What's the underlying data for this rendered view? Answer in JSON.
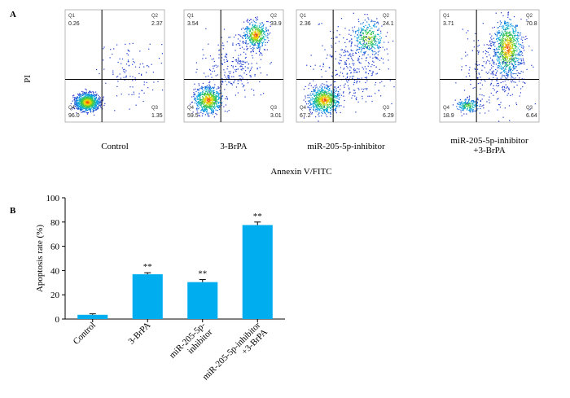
{
  "panel_a": {
    "letter": "A",
    "ylabel": "PI",
    "xlabel": "Annexin V/FITC",
    "plots": [
      {
        "label_lines": [
          "Control"
        ],
        "q1": "0.26",
        "q2": "2.37",
        "q3": "1.35",
        "q4": "96.0"
      },
      {
        "label_lines": [
          "3-BrPA"
        ],
        "q1": "3.54",
        "q2": "33.9",
        "q3": "3.01",
        "q4": "59.5"
      },
      {
        "label_lines": [
          "miR-205-5p-inhibitor"
        ],
        "q1": "2.36",
        "q2": "24.1",
        "q3": "6.29",
        "q4": "67.2"
      },
      {
        "label_lines": [
          "miR-205-5p-inhibitor",
          "+3-BrPA"
        ],
        "q1": "3.71",
        "q2": "70.8",
        "q3": "6.64",
        "q4": "18.9"
      }
    ],
    "quadrant_names": {
      "q1": "Q1",
      "q2": "Q2",
      "q3": "Q3",
      "q4": "Q4"
    }
  },
  "panel_b": {
    "letter": "B"
  },
  "chart_data": {
    "type": "bar",
    "categories": [
      "Control",
      "3-BrPA",
      "miR-205-5p-inhibitor",
      "miR-205-5p-inhibitor+3-BrPA"
    ],
    "category_lines": [
      [
        "Control"
      ],
      [
        "3-BrPA"
      ],
      [
        "miR-205-5p-",
        "inhibitor"
      ],
      [
        "miR-205-5p-inhibitor",
        "+3-BrPA"
      ]
    ],
    "values": [
      3.5,
      37,
      30.5,
      77.5
    ],
    "errors": [
      0.8,
      1.2,
      2.0,
      2.5
    ],
    "significance": [
      "",
      "**",
      "**",
      "**"
    ],
    "ylabel": "Apoptosis rate (%)",
    "xlabel": "",
    "ylim": [
      0,
      100
    ],
    "yticks": [
      0,
      20,
      40,
      60,
      80,
      100
    ],
    "bar_color": "#00aeef",
    "grid": false
  }
}
